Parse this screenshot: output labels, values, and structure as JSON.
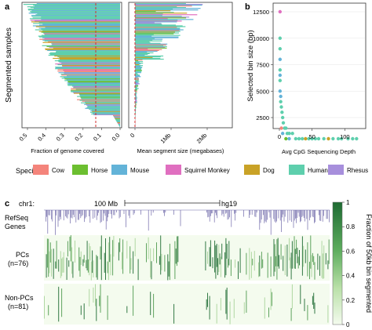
{
  "colors": {
    "cow": "#f4847b",
    "horse": "#6cbf30",
    "mouse": "#63b3d8",
    "squirrel_monkey": "#e06fc0",
    "dog": "#c9a227",
    "human": "#5ecfad",
    "rhesus": "#a78fdc",
    "threshold_line": "#d32f2f",
    "heat_high": "#1e6b32",
    "heat_low": "#f4fbee",
    "track": "#6e68a8"
  },
  "panel_labels": {
    "a": "a",
    "b": "b",
    "c": "c"
  },
  "legend": {
    "title": "Species:",
    "items": [
      {
        "label": "Cow",
        "color_key": "cow"
      },
      {
        "label": "Horse",
        "color_key": "horse"
      },
      {
        "label": "Mouse",
        "color_key": "mouse"
      },
      {
        "label": "Squirrel Monkey",
        "color_key": "squirrel_monkey"
      },
      {
        "label": "Dog",
        "color_key": "dog"
      },
      {
        "label": "Human",
        "color_key": "human"
      },
      {
        "label": "Rhesus",
        "color_key": "rhesus"
      }
    ]
  },
  "genome_browser": {
    "chrom": "chr1:",
    "scale_label": "100 Mb",
    "assembly": "hg19",
    "tracks": [
      "RefSeq\nGenes",
      "PCs\n(n=76)",
      "Non-PCs\n(n=81)"
    ],
    "track_labels": {
      "refseq": [
        "RefSeq",
        "Genes"
      ],
      "pcs": [
        "PCs",
        "(n=76)"
      ],
      "nonpcs": [
        "Non-PCs",
        "(n=81)"
      ]
    }
  },
  "chart_data": [
    {
      "panel": "a-left",
      "type": "bar",
      "orientation": "horizontal",
      "ylabel": "Segmented samples",
      "xlabel": "Fraction of genome covered",
      "xlim": [
        0.55,
        0.0
      ],
      "x_reversed": true,
      "xticks": [
        "0.5",
        "0.4",
        "0.3",
        "0.2",
        "0.1",
        "0.0"
      ],
      "threshold": 0.1,
      "n_samples": 157,
      "description_values": "sorted descending, top ~0.53, bottom ~0.0"
    },
    {
      "panel": "a-right",
      "type": "bar",
      "orientation": "horizontal",
      "xlabel": "Mean segment size (megabases)",
      "xticks": [
        "0",
        "1Mb",
        "2Mb"
      ],
      "xlim": [
        0,
        2.7
      ],
      "threshold": 0.0
    },
    {
      "panel": "b",
      "type": "scatter",
      "xlabel": "Avg CpG Sequencing Depth",
      "ylabel": "Selected bin size (bp)",
      "xticks": [
        "0",
        "50",
        "100"
      ],
      "yticks": [
        "2500",
        "5000",
        "7500",
        "10000",
        "12500"
      ],
      "xlim": [
        -5,
        130
      ],
      "ylim": [
        200,
        13000
      ],
      "points": [
        {
          "x": 1,
          "y": 12500,
          "s": "squirrel_monkey"
        },
        {
          "x": 1,
          "y": 10000,
          "s": "human"
        },
        {
          "x": 1,
          "y": 9000,
          "s": "human"
        },
        {
          "x": 1,
          "y": 7000,
          "s": "human"
        },
        {
          "x": 1,
          "y": 6500,
          "s": "mouse"
        },
        {
          "x": 1,
          "y": 6000,
          "s": "human"
        },
        {
          "x": 1,
          "y": 5000,
          "s": "mouse"
        },
        {
          "x": 2,
          "y": 4500,
          "s": "mouse"
        },
        {
          "x": 2,
          "y": 4000,
          "s": "human"
        },
        {
          "x": 3,
          "y": 3500,
          "s": "human"
        },
        {
          "x": 4,
          "y": 3000,
          "s": "human"
        },
        {
          "x": 5,
          "y": 2500,
          "s": "human"
        },
        {
          "x": 6,
          "y": 2000,
          "s": "human"
        },
        {
          "x": 8,
          "y": 1500,
          "s": "human"
        },
        {
          "x": 10,
          "y": 1500,
          "s": "human"
        },
        {
          "x": 12,
          "y": 1000,
          "s": "human"
        },
        {
          "x": 15,
          "y": 1000,
          "s": "human"
        },
        {
          "x": 20,
          "y": 1000,
          "s": "human"
        },
        {
          "x": 25,
          "y": 500,
          "s": "human"
        },
        {
          "x": 30,
          "y": 500,
          "s": "human"
        },
        {
          "x": 35,
          "y": 500,
          "s": "human"
        },
        {
          "x": 40,
          "y": 500,
          "s": "dog"
        },
        {
          "x": 45,
          "y": 500,
          "s": "human"
        },
        {
          "x": 50,
          "y": 500,
          "s": "human"
        },
        {
          "x": 55,
          "y": 500,
          "s": "human"
        },
        {
          "x": 60,
          "y": 500,
          "s": "human"
        },
        {
          "x": 68,
          "y": 500,
          "s": "human"
        },
        {
          "x": 75,
          "y": 500,
          "s": "dog"
        },
        {
          "x": 82,
          "y": 500,
          "s": "human"
        },
        {
          "x": 90,
          "y": 500,
          "s": "human"
        },
        {
          "x": 95,
          "y": 500,
          "s": "human"
        },
        {
          "x": 105,
          "y": 500,
          "s": "human"
        },
        {
          "x": 112,
          "y": 500,
          "s": "human"
        },
        {
          "x": 118,
          "y": 500,
          "s": "human"
        },
        {
          "x": 10,
          "y": 500,
          "s": "horse"
        },
        {
          "x": 15,
          "y": 500,
          "s": "mouse"
        },
        {
          "x": 5,
          "y": 1000,
          "s": "mouse"
        },
        {
          "x": 3,
          "y": 1500,
          "s": "cow"
        },
        {
          "x": 1,
          "y": 8000,
          "s": "mouse"
        }
      ]
    },
    {
      "panel": "c-colorbar",
      "type": "heatmap",
      "label": "Fraction of 50kb bin segmented",
      "ticks": [
        "0",
        "0.2",
        "0.4",
        "0.6",
        "0.8",
        "1"
      ],
      "range": [
        0,
        1
      ]
    }
  ]
}
